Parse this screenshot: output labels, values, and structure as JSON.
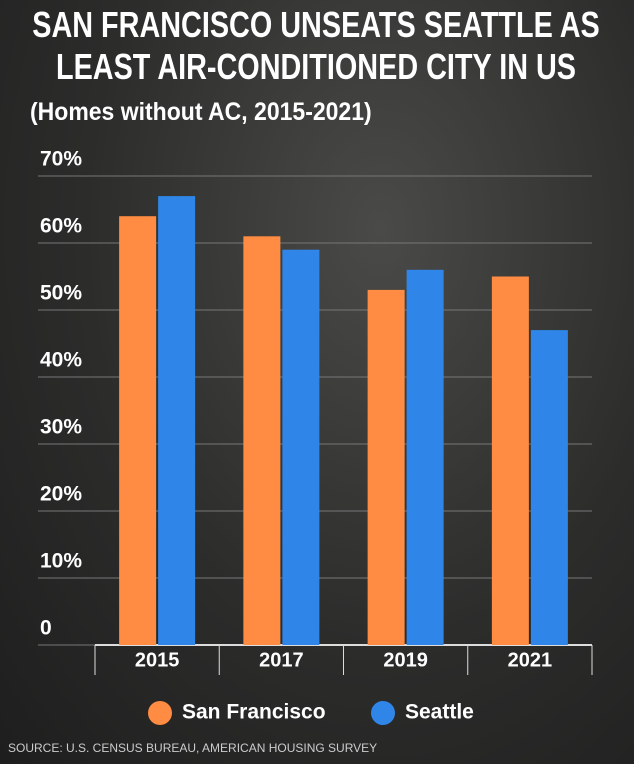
{
  "chart_data": {
    "type": "bar",
    "title": "SAN FRANCISCO UNSEATS SEATTLE AS LEAST AIR-CONDITIONED CITY IN US",
    "subtitle": "(Homes without AC, 2015-2021)",
    "source": "SOURCE: U.S. CENSUS BUREAU, AMERICAN HOUSING SURVEY",
    "categories": [
      "2015",
      "2017",
      "2019",
      "2021"
    ],
    "series": [
      {
        "name": "San Francisco",
        "color": "#ff8c42",
        "values": [
          64,
          61,
          53,
          55
        ]
      },
      {
        "name": "Seattle",
        "color": "#2f86e8",
        "values": [
          67,
          59,
          56,
          47
        ]
      }
    ],
    "ylim": [
      0,
      70
    ],
    "yticks": [
      0,
      {
        "value": 10,
        "label": "10%"
      },
      {
        "value": 20,
        "label": "20%"
      },
      {
        "value": 30,
        "label": "30%"
      },
      {
        "value": 40,
        "label": "40%"
      },
      {
        "value": 50,
        "label": "50%"
      },
      {
        "value": 60,
        "label": "60%"
      },
      {
        "value": 70,
        "label": "70%"
      }
    ],
    "grid": true
  }
}
